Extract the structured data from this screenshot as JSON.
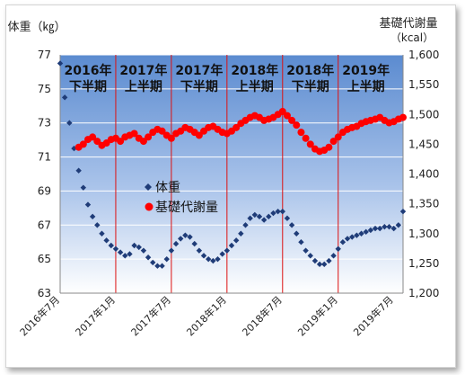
{
  "chart_data": {
    "type": "scatter",
    "title": "",
    "ylabel_left": "体重（㎏）",
    "ylabel_right": "基礎代謝量",
    "ylabel_right_unit": "（kcal）",
    "y_left": {
      "range": [
        63,
        77
      ],
      "ticks": [
        "63",
        "65",
        "67",
        "69",
        "71",
        "73",
        "75",
        "77"
      ]
    },
    "y_right": {
      "range": [
        1200,
        1600
      ],
      "ticks": [
        "1,200",
        "1,250",
        "1,300",
        "1,350",
        "1,400",
        "1,450",
        "1,500",
        "1,550",
        "1,600"
      ]
    },
    "x_ticks": [
      "2016年7月",
      "2017年1月",
      "2017年7月",
      "2018年1月",
      "2018年7月",
      "2019年1月",
      "2019年7月"
    ],
    "x_tick_months": [
      0,
      6,
      12,
      18,
      24,
      30,
      36
    ],
    "x_range_months": [
      0,
      37
    ],
    "periods": [
      {
        "year": "2016年",
        "half": "下半期"
      },
      {
        "year": "2017年",
        "half": "上半期"
      },
      {
        "year": "2017年",
        "half": "下半期"
      },
      {
        "year": "2018年",
        "half": "上半期"
      },
      {
        "year": "2018年",
        "half": "下半期"
      },
      {
        "year": "2019年",
        "half": "上半期"
      }
    ],
    "legend": {
      "placement": "center-left",
      "entries": [
        "体重",
        "基礎代謝量"
      ]
    },
    "series": [
      {
        "name": "体重",
        "axis": "left",
        "marker": "diamond",
        "color": "#1f3c78",
        "x": [
          0,
          0.5,
          1,
          1.5,
          2,
          2.5,
          3,
          3.5,
          4,
          4.5,
          5,
          5.5,
          6,
          6.5,
          7,
          7.5,
          8,
          8.5,
          9,
          9.5,
          10,
          10.5,
          11,
          11.5,
          12,
          12.5,
          13,
          13.5,
          14,
          14.5,
          15,
          15.5,
          16,
          16.5,
          17,
          17.5,
          18,
          18.5,
          19,
          19.5,
          20,
          20.5,
          21,
          21.5,
          22,
          22.5,
          23,
          23.5,
          24,
          24.5,
          25,
          25.5,
          26,
          26.5,
          27,
          27.5,
          28,
          28.5,
          29,
          29.5,
          30,
          30.5,
          31,
          31.5,
          32,
          32.5,
          33,
          33.5,
          34,
          34.5,
          35,
          35.5,
          36,
          36.5,
          37
        ],
        "y": [
          76.5,
          74.5,
          73,
          71.5,
          70.2,
          69.2,
          68.2,
          67.5,
          67,
          66.5,
          66.1,
          65.8,
          65.6,
          65.4,
          65.2,
          65.3,
          65.8,
          65.7,
          65.5,
          65.1,
          64.8,
          64.6,
          64.6,
          65,
          65.5,
          65.9,
          66.2,
          66.4,
          66.3,
          65.9,
          65.5,
          65.2,
          65,
          64.9,
          65,
          65.3,
          65.5,
          65.8,
          66.1,
          66.5,
          67,
          67.4,
          67.6,
          67.5,
          67.3,
          67.5,
          67.7,
          67.8,
          67.8,
          67.4,
          67,
          66.5,
          66,
          65.5,
          65.2,
          64.9,
          64.7,
          64.7,
          64.9,
          65.2,
          65.6,
          66,
          66.2,
          66.3,
          66.4,
          66.5,
          66.6,
          66.7,
          66.8,
          66.8,
          66.9,
          66.9,
          66.8,
          67,
          67.8
        ]
      },
      {
        "name": "基礎代謝量",
        "axis": "right",
        "marker": "circle",
        "color": "#ff0000",
        "x": [
          2,
          2.5,
          3,
          3.5,
          4,
          4.5,
          5,
          5.5,
          6,
          6.5,
          7,
          7.5,
          8,
          8.5,
          9,
          9.5,
          10,
          10.5,
          11,
          11.5,
          12,
          12.5,
          13,
          13.5,
          14,
          14.5,
          15,
          15.5,
          16,
          16.5,
          17,
          17.5,
          18,
          18.5,
          19,
          19.5,
          20,
          20.5,
          21,
          21.5,
          22,
          22.5,
          23,
          23.5,
          24,
          24.5,
          25,
          25.5,
          26,
          26.5,
          27,
          27.5,
          28,
          28.5,
          29,
          29.5,
          30,
          30.5,
          31,
          31.5,
          32,
          32.5,
          33,
          33.5,
          34,
          34.5,
          35,
          35.5,
          36,
          36.5,
          37
        ],
        "y": [
          1445,
          1450,
          1458,
          1462,
          1455,
          1448,
          1452,
          1458,
          1460,
          1455,
          1462,
          1465,
          1468,
          1460,
          1455,
          1462,
          1470,
          1475,
          1472,
          1465,
          1460,
          1468,
          1472,
          1478,
          1475,
          1470,
          1465,
          1472,
          1478,
          1480,
          1475,
          1470,
          1468,
          1472,
          1478,
          1485,
          1490,
          1495,
          1498,
          1495,
          1490,
          1492,
          1495,
          1500,
          1505,
          1498,
          1490,
          1482,
          1470,
          1460,
          1450,
          1442,
          1438,
          1440,
          1445,
          1455,
          1462,
          1470,
          1475,
          1478,
          1480,
          1485,
          1488,
          1490,
          1492,
          1495,
          1490,
          1486,
          1488,
          1492,
          1495
        ]
      }
    ]
  }
}
